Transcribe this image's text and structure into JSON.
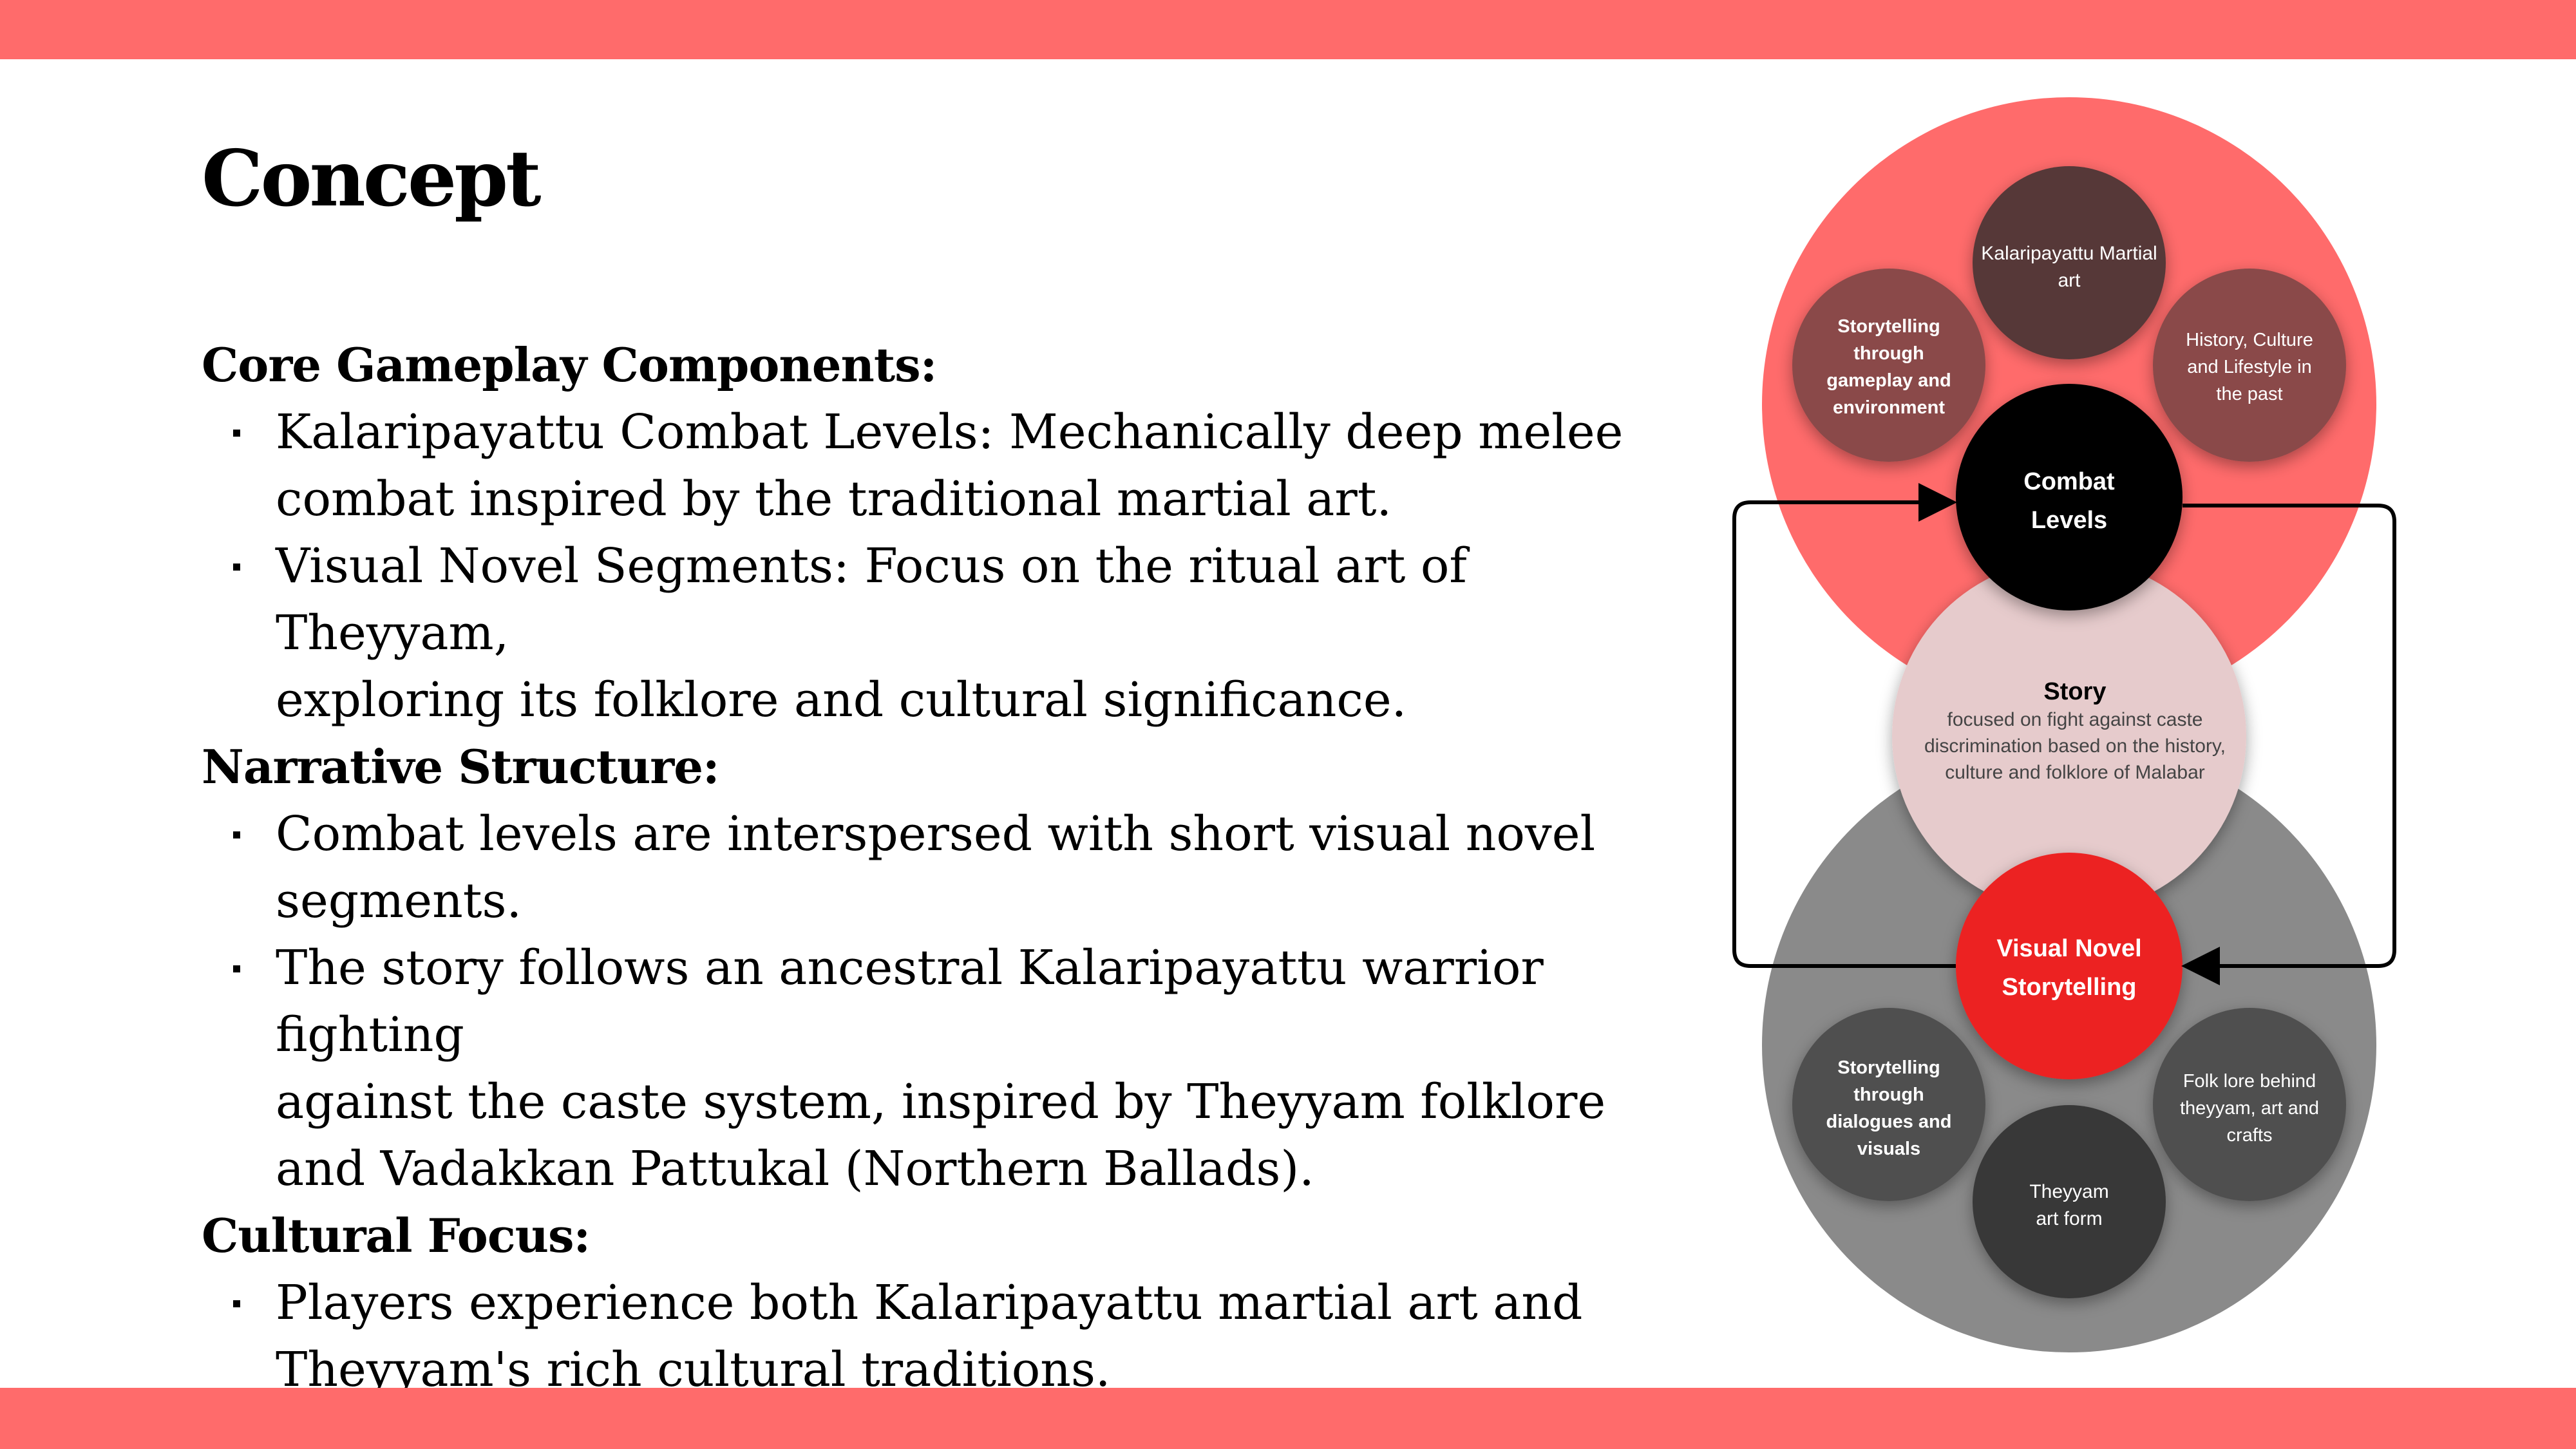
{
  "colors": {
    "band": "#ff6b6b",
    "top_circle": "#ff6b6b",
    "bottom_circle": "#8a8a8a",
    "story_circle": "#e6cbcc",
    "combat_circle": "#000000",
    "visual_novel_circle": "#ec2323",
    "top_satellite_dark": "#573939",
    "top_satellite": "#8a4a4a",
    "bottom_satellite": "#4f4f4f",
    "bottom_satellite_dark": "#383838"
  },
  "slide": {
    "title": "Concept",
    "sections": [
      {
        "heading": "Core Gameplay Components:",
        "bullets": [
          [
            "Kalaripayattu Combat Levels: Mechanically deep melee",
            "combat inspired by the traditional martial art."
          ],
          [
            "Visual Novel Segments: Focus on the ritual art of Theyyam,",
            "exploring its folklore and cultural significance."
          ]
        ]
      },
      {
        "heading": "Narrative Structure:",
        "bullets": [
          [
            "Combat levels are interspersed with short visual novel",
            "segments."
          ],
          [
            "The story follows an ancestral Kalaripayattu warrior fighting",
            "against the caste system, inspired by Theyyam folklore",
            "and Vadakkan Pattukal (Northern Ballads)."
          ]
        ]
      },
      {
        "heading": "Cultural Focus:",
        "bullets": [
          [
            "Players experience both Kalaripayattu martial art and",
            "Theyyam's rich cultural traditions."
          ]
        ]
      }
    ]
  },
  "diagram": {
    "combat": [
      "Combat",
      "Levels"
    ],
    "visual_novel": [
      "Visual Novel",
      "Storytelling"
    ],
    "story_title": "Story",
    "story_desc": [
      "focused on fight against caste",
      "discrimination based on the history,",
      "culture and folklore of Malabar"
    ],
    "top_items": [
      [
        "Kalaripayattu Martial",
        "art"
      ],
      [
        "Storytelling",
        "through",
        "gameplay and",
        "environment"
      ],
      [
        "History, Culture",
        "and Lifestyle in",
        "the past"
      ]
    ],
    "bottom_items": [
      [
        "Storytelling",
        "through",
        "dialogues and",
        "visuals"
      ],
      [
        "Folk lore behind",
        "theyyam, art and",
        "crafts"
      ],
      [
        "Theyyam",
        "art form"
      ]
    ]
  }
}
